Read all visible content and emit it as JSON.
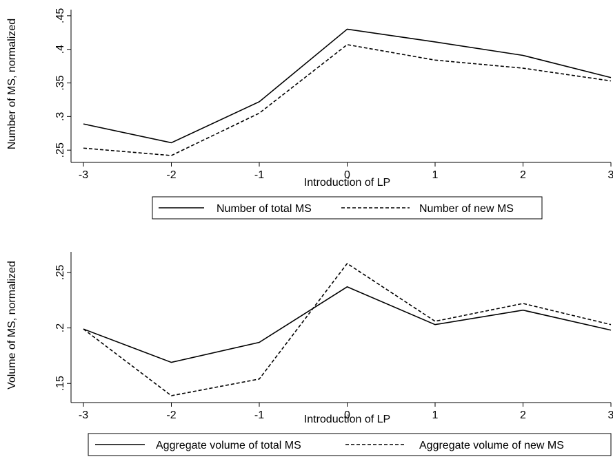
{
  "chart_data": [
    {
      "type": "line",
      "x": [
        -3,
        -2,
        -1,
        0,
        1,
        2,
        3
      ],
      "xticks": [
        "-3",
        "-2",
        "-1",
        "0",
        "1",
        "2",
        "3"
      ],
      "yticks": [
        ".25",
        ".3",
        ".35",
        ".4",
        ".45"
      ],
      "ytick_values": [
        0.25,
        0.3,
        0.35,
        0.4,
        0.45
      ],
      "xlabel": "Introduction of LP",
      "ylabel": "Number of MS, normalized",
      "xlim": [
        -3,
        3
      ],
      "ylim": [
        0.242,
        0.455
      ],
      "grid": false,
      "legend_position": "bottom",
      "series": [
        {
          "name": "Number of total MS",
          "style": "solid",
          "values": [
            0.289,
            0.261,
            0.322,
            0.43,
            0.411,
            0.391,
            0.358
          ]
        },
        {
          "name": "Number of new MS",
          "style": "dashed",
          "values": [
            0.253,
            0.242,
            0.305,
            0.407,
            0.384,
            0.372,
            0.353
          ]
        }
      ]
    },
    {
      "type": "line",
      "x": [
        -3,
        -2,
        -1,
        0,
        1,
        2,
        3
      ],
      "xticks": [
        "-3",
        "-2",
        "-1",
        "0",
        "1",
        "2",
        "3"
      ],
      "yticks": [
        ".15",
        ".2",
        ".25"
      ],
      "ytick_values": [
        0.15,
        0.2,
        0.25
      ],
      "xlabel": "Introduction of LP",
      "ylabel": "Volume of MS, normalized",
      "xlim": [
        -3,
        3
      ],
      "ylim": [
        0.139,
        0.266
      ],
      "grid": false,
      "legend_position": "bottom",
      "series": [
        {
          "name": "Aggregate volume of total MS",
          "style": "solid",
          "values": [
            0.199,
            0.169,
            0.187,
            0.237,
            0.203,
            0.216,
            0.198
          ]
        },
        {
          "name": "Aggregate volume of new MS",
          "style": "dashed",
          "values": [
            0.199,
            0.139,
            0.154,
            0.258,
            0.206,
            0.222,
            0.203
          ]
        }
      ]
    }
  ],
  "colors": {
    "line": "#000000",
    "background": "#ffffff"
  }
}
